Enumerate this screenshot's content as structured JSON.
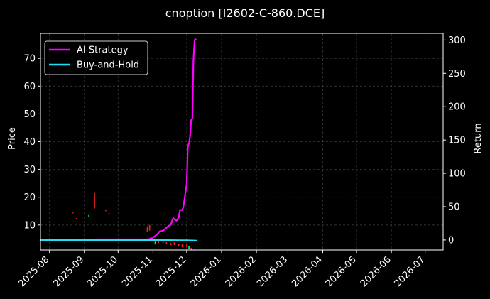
{
  "chart_data": {
    "type": "line",
    "title": "cnoption [I2602-C-860.DCE]",
    "ylabel_left": "Price",
    "ylabel_right": "Return",
    "x_ticks": [
      "2025-08",
      "2025-09",
      "2025-10",
      "2025-11",
      "2025-12",
      "2026-01",
      "2026-02",
      "2026-03",
      "2026-04",
      "2026-05",
      "2026-06",
      "2026-07"
    ],
    "xlim": [
      "2025-07-24",
      "2026-07-17"
    ],
    "y_left": {
      "range": [
        1,
        79
      ],
      "ticks": [
        10,
        20,
        30,
        40,
        50,
        60,
        70
      ]
    },
    "y_right": {
      "range": [
        -15,
        310
      ],
      "ticks": [
        0,
        50,
        100,
        150,
        200,
        250,
        300
      ]
    },
    "grid": true,
    "legend": {
      "placement": "top-left"
    },
    "series": [
      {
        "name": "AI Strategy",
        "axis": "right",
        "color": "#ff00ff",
        "points": [
          [
            "2025-07-24",
            0
          ],
          [
            "2025-09-10",
            0
          ],
          [
            "2025-09-11",
            1
          ],
          [
            "2025-10-28",
            1
          ],
          [
            "2025-10-31",
            3
          ],
          [
            "2025-11-03",
            6
          ],
          [
            "2025-11-05",
            9
          ],
          [
            "2025-11-07",
            13
          ],
          [
            "2025-11-10",
            14
          ],
          [
            "2025-11-12",
            17
          ],
          [
            "2025-11-14",
            20
          ],
          [
            "2025-11-17",
            23
          ],
          [
            "2025-11-18",
            29
          ],
          [
            "2025-11-19",
            33
          ],
          [
            "2025-11-20",
            31
          ],
          [
            "2025-11-22",
            29
          ],
          [
            "2025-11-24",
            34
          ],
          [
            "2025-11-25",
            45
          ],
          [
            "2025-11-27",
            45
          ],
          [
            "2025-11-28",
            49
          ],
          [
            "2025-12-01",
            84
          ],
          [
            "2025-12-02",
            140
          ],
          [
            "2025-12-03",
            145
          ],
          [
            "2025-12-04",
            155
          ],
          [
            "2025-12-05",
            180
          ],
          [
            "2025-12-06",
            182
          ],
          [
            "2025-12-07",
            270
          ],
          [
            "2025-12-08",
            300
          ],
          [
            "2025-12-09",
            301
          ]
        ]
      },
      {
        "name": "Buy-and-Hold",
        "axis": "right",
        "color": "#20e0f0",
        "points": [
          [
            "2025-07-24",
            0
          ],
          [
            "2025-09-10",
            0
          ],
          [
            "2025-11-01",
            0
          ],
          [
            "2025-12-01",
            -0.5
          ],
          [
            "2025-12-10",
            -1
          ]
        ]
      }
    ],
    "candles": {
      "axis": "left",
      "up_color": "#00ff66",
      "down_color": "#ff2020",
      "items": [
        [
          "2025-08-22",
          14.5,
          14.5,
          "down"
        ],
        [
          "2025-08-25",
          12.0,
          12.5,
          "down"
        ],
        [
          "2025-09-05",
          13.0,
          13.6,
          "up"
        ],
        [
          "2025-09-10",
          16.0,
          21.5,
          "down"
        ],
        [
          "2025-09-20",
          15.0,
          15.4,
          "down"
        ],
        [
          "2025-09-23",
          13.8,
          14.3,
          "down"
        ],
        [
          "2025-10-27",
          7.5,
          9.5,
          "down"
        ],
        [
          "2025-10-29",
          8.0,
          10.0,
          "down"
        ],
        [
          "2025-11-03",
          3.0,
          4.0,
          "up"
        ],
        [
          "2025-11-06",
          3.5,
          4.2,
          "down"
        ],
        [
          "2025-11-10",
          3.5,
          4.0,
          "down"
        ],
        [
          "2025-11-13",
          3.3,
          3.8,
          "down"
        ],
        [
          "2025-11-17",
          2.8,
          3.5,
          "down"
        ],
        [
          "2025-11-20",
          2.8,
          3.8,
          "down"
        ],
        [
          "2025-11-24",
          2.5,
          3.3,
          "down"
        ],
        [
          "2025-11-27",
          2.0,
          3.2,
          "down"
        ],
        [
          "2025-12-01",
          2.0,
          3.0,
          "down"
        ],
        [
          "2025-12-03",
          1.5,
          2.5,
          "up"
        ],
        [
          "2025-12-05",
          1.0,
          1.8,
          "down"
        ],
        [
          "2025-12-08",
          0.9,
          1.5,
          "down"
        ]
      ]
    }
  }
}
